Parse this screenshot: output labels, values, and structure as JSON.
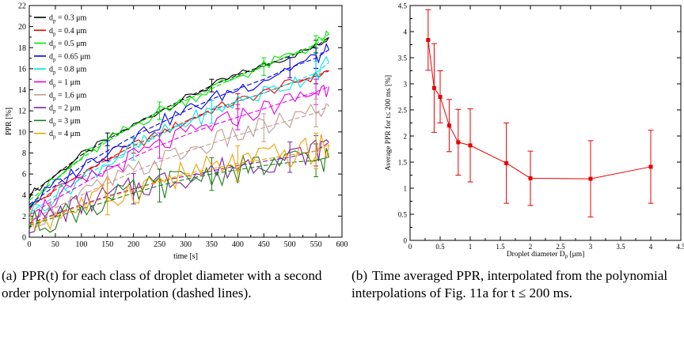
{
  "chart_data": [
    {
      "type": "line",
      "title": "",
      "xlabel": "time [s]",
      "ylabel": "PPR [%]",
      "xlim": [
        0,
        600
      ],
      "ylim": [
        0,
        22
      ],
      "xticks": [
        0,
        50,
        100,
        150,
        200,
        250,
        300,
        350,
        400,
        450,
        500,
        550,
        600
      ],
      "yticks": [
        0,
        2,
        4,
        6,
        8,
        10,
        12,
        14,
        16,
        18,
        20,
        22
      ],
      "legend_position": "top-left",
      "grid": false,
      "x": [
        0,
        50,
        100,
        150,
        200,
        250,
        300,
        350,
        400,
        450,
        500,
        550,
        575
      ],
      "series": [
        {
          "name": "d_p = 0.3 μm",
          "label_main": "d",
          "label_sub": "p",
          "label_rest": " = 0.3 μm",
          "color": "#000000",
          "values": [
            4.0,
            5.9,
            7.8,
            9.3,
            10.6,
            12.0,
            13.2,
            14.4,
            15.4,
            16.3,
            17.2,
            18.1,
            19.0
          ]
        },
        {
          "name": "d_p = 0.4 μm",
          "label_main": "d",
          "label_sub": "p",
          "label_rest": " = 0.4 μm",
          "color": "#e60000",
          "values": [
            2.8,
            4.5,
            6.0,
            7.4,
            8.7,
            9.8,
            11.0,
            12.1,
            12.9,
            13.7,
            14.6,
            15.3,
            15.8
          ]
        },
        {
          "name": "d_p = 0.5 μm",
          "label_main": "d",
          "label_sub": "p",
          "label_rest": " = 0.5 μm",
          "color": "#00e600",
          "values": [
            3.5,
            5.4,
            7.5,
            9.1,
            10.6,
            12.0,
            13.0,
            14.1,
            15.3,
            16.2,
            17.3,
            18.3,
            19.3
          ]
        },
        {
          "name": "d_p = 0.65 μm",
          "label_main": "d",
          "label_sub": "p",
          "label_rest": " = 0.65 μm",
          "color": "#0000e6",
          "values": [
            3.1,
            4.9,
            6.7,
            8.2,
            9.6,
            10.8,
            12.0,
            13.1,
            14.1,
            15.0,
            16.1,
            17.0,
            17.8
          ]
        },
        {
          "name": "d_p = 0.8 μm",
          "label_main": "d",
          "label_sub": "p",
          "label_rest": " = 0.8 μm",
          "color": "#00e6e6",
          "values": [
            2.3,
            3.9,
            5.6,
            7.1,
            8.4,
            9.7,
            10.9,
            11.9,
            12.9,
            13.7,
            14.6,
            15.6,
            16.6
          ]
        },
        {
          "name": "d_p = 1 μm",
          "label_main": "d",
          "label_sub": "p",
          "label_rest": " = 1 μm",
          "color": "#e600e6",
          "values": [
            2.1,
            3.6,
            5.0,
            6.4,
            7.6,
            8.7,
            9.7,
            10.6,
            11.4,
            12.2,
            13.0,
            13.8,
            14.3
          ]
        },
        {
          "name": "d_p = 1.6 μm",
          "label_main": "d",
          "label_sub": "p",
          "label_rest": " = 1.6 μm",
          "color": "#c09a92",
          "values": [
            1.6,
            2.8,
            4.0,
            5.1,
            6.2,
            7.2,
            8.1,
            8.9,
            9.7,
            10.4,
            11.1,
            11.8,
            12.5
          ]
        },
        {
          "name": "d_p = 2 μm",
          "label_main": "d",
          "label_sub": "p",
          "label_rest": " = 2 μm",
          "color": "#7a1fa2",
          "values": [
            1.3,
            2.2,
            3.1,
            3.9,
            4.6,
            5.3,
            5.8,
            6.3,
            6.8,
            7.2,
            7.6,
            8.2,
            9.0
          ]
        },
        {
          "name": "d_p = 3 μm",
          "label_main": "d",
          "label_sub": "p",
          "label_rest": " = 3 μm",
          "color": "#1e7a1e",
          "values": [
            1.1,
            1.9,
            2.7,
            3.4,
            4.2,
            4.9,
            5.5,
            6.0,
            6.4,
            6.8,
            7.1,
            7.3,
            7.6
          ]
        },
        {
          "name": "d_p = 4 μm",
          "label_main": "d",
          "label_sub": "p",
          "label_rest": " = 4 μm",
          "color": "#f0a000",
          "values": [
            1.2,
            2.1,
            3.0,
            3.8,
            4.5,
            5.3,
            6.0,
            6.5,
            7.0,
            7.4,
            7.8,
            8.2,
            8.8
          ]
        }
      ]
    },
    {
      "type": "scatter",
      "title": "",
      "xlabel": "Droplet diameter D",
      "xlabel_sub": "p",
      "xlabel_rest": " [μm]",
      "ylabel": "Average PPR for t≤ 200 ms [%]",
      "xlim": [
        0,
        4.5
      ],
      "ylim": [
        0,
        4.5
      ],
      "xticks": [
        "0",
        "0.5",
        "1",
        "1.5",
        "2",
        "2.5",
        "3",
        "3.5",
        "4",
        "4.5"
      ],
      "yticks": [
        "0",
        "0.5",
        "1",
        "1.5",
        "2",
        "2.5",
        "3",
        "3.5",
        "4",
        "4.5"
      ],
      "grid": false,
      "color": "#e60000",
      "x": [
        0.3,
        0.4,
        0.5,
        0.65,
        0.8,
        1.0,
        1.6,
        2.0,
        3.0,
        4.0
      ],
      "y": [
        3.84,
        2.92,
        2.75,
        2.2,
        1.88,
        1.82,
        1.48,
        1.19,
        1.18,
        1.41
      ],
      "error": [
        0.58,
        0.85,
        0.5,
        0.5,
        0.63,
        0.7,
        0.77,
        0.52,
        0.73,
        0.7
      ]
    }
  ],
  "captions": {
    "a": {
      "label": "(a)",
      "text": "PPR(t) for each class of droplet diameter with a second order polynomial interpolation (dashed lines)."
    },
    "b": {
      "label": "(b)",
      "text": "Time averaged PPR, interpolated from the polynomial interpolations of Fig. 11a for t ≤ 200 ms."
    }
  }
}
